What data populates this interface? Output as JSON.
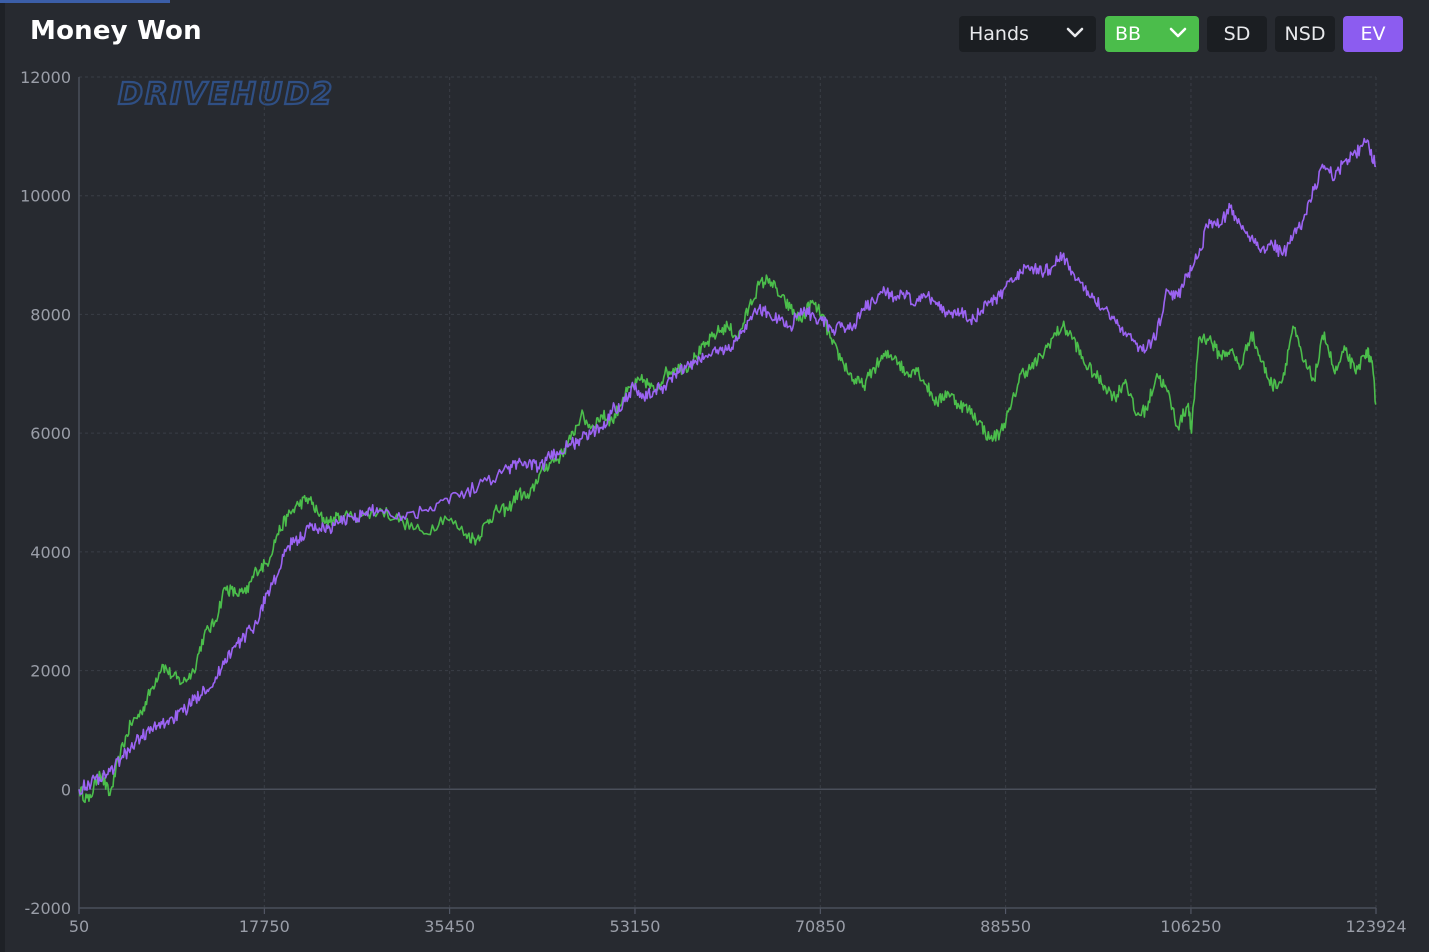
{
  "header": {
    "title": "Money Won"
  },
  "toolbar": {
    "x_unit_label": "Hands",
    "y_unit_label": "BB",
    "sd_label": "SD",
    "nsd_label": "NSD",
    "ev_label": "EV"
  },
  "watermark": "DRIVEHUD2",
  "colors": {
    "background": "#272a30",
    "grid": "#3a3e46",
    "won_line": "#4bbd4b",
    "ev_line": "#9b63f2",
    "active_green": "#4bbd4b",
    "active_violet": "#8c5cf0"
  },
  "chart_data": {
    "type": "line",
    "title": "Money Won",
    "xlabel": "",
    "ylabel": "",
    "xlim": [
      50,
      123924
    ],
    "ylim": [
      -2000,
      12000
    ],
    "x_ticks": [
      "50",
      "17750",
      "35450",
      "53150",
      "70850",
      "88550",
      "106250",
      "123924"
    ],
    "y_ticks": [
      "12000",
      "10000",
      "8000",
      "6000",
      "4000",
      "2000",
      "0",
      "-2000"
    ],
    "grid": true,
    "legend": "none",
    "series": [
      {
        "color": "#4bbd4b",
        "points": [
          [
            50,
            0
          ],
          [
            1000,
            -200
          ],
          [
            2000,
            300
          ],
          [
            3000,
            -100
          ],
          [
            4000,
            600
          ],
          [
            5000,
            1100
          ],
          [
            6000,
            1300
          ],
          [
            7000,
            1700
          ],
          [
            8000,
            2100
          ],
          [
            9000,
            1900
          ],
          [
            10000,
            1800
          ],
          [
            11000,
            2000
          ],
          [
            12000,
            2600
          ],
          [
            13000,
            2800
          ],
          [
            14000,
            3400
          ],
          [
            15000,
            3300
          ],
          [
            16000,
            3300
          ],
          [
            17000,
            3700
          ],
          [
            18000,
            3800
          ],
          [
            19000,
            4300
          ],
          [
            20000,
            4600
          ],
          [
            21000,
            4800
          ],
          [
            22000,
            4900
          ],
          [
            23000,
            4600
          ],
          [
            24000,
            4500
          ],
          [
            25000,
            4600
          ],
          [
            27000,
            4600
          ],
          [
            29000,
            4700
          ],
          [
            31000,
            4500
          ],
          [
            33000,
            4300
          ],
          [
            35000,
            4600
          ],
          [
            37000,
            4300
          ],
          [
            38000,
            4200
          ],
          [
            39000,
            4500
          ],
          [
            40000,
            4700
          ],
          [
            41000,
            4700
          ],
          [
            42000,
            5000
          ],
          [
            43000,
            4900
          ],
          [
            44000,
            5300
          ],
          [
            45000,
            5500
          ],
          [
            46000,
            5600
          ],
          [
            47000,
            5900
          ],
          [
            48000,
            6300
          ],
          [
            49000,
            6100
          ],
          [
            50000,
            6300
          ],
          [
            51000,
            6200
          ],
          [
            52000,
            6600
          ],
          [
            53000,
            6800
          ],
          [
            54000,
            6900
          ],
          [
            55000,
            6700
          ],
          [
            56000,
            7000
          ],
          [
            57000,
            7100
          ],
          [
            58000,
            7100
          ],
          [
            59000,
            7300
          ],
          [
            60000,
            7500
          ],
          [
            61000,
            7700
          ],
          [
            62000,
            7800
          ],
          [
            63000,
            7600
          ],
          [
            64000,
            8100
          ],
          [
            65000,
            8500
          ],
          [
            66000,
            8600
          ],
          [
            67000,
            8300
          ],
          [
            68000,
            8100
          ],
          [
            69000,
            7900
          ],
          [
            70000,
            8200
          ],
          [
            71000,
            8000
          ],
          [
            72000,
            7500
          ],
          [
            73000,
            7200
          ],
          [
            74000,
            6900
          ],
          [
            75000,
            6800
          ],
          [
            76000,
            7100
          ],
          [
            77000,
            7300
          ],
          [
            78000,
            7300
          ],
          [
            79000,
            7000
          ],
          [
            80000,
            7100
          ],
          [
            81000,
            6800
          ],
          [
            82000,
            6500
          ],
          [
            83000,
            6700
          ],
          [
            84000,
            6500
          ],
          [
            85000,
            6400
          ],
          [
            86000,
            6200
          ],
          [
            87000,
            5900
          ],
          [
            88000,
            6000
          ],
          [
            89000,
            6400
          ],
          [
            90000,
            7000
          ],
          [
            91000,
            7100
          ],
          [
            92000,
            7300
          ],
          [
            93000,
            7600
          ],
          [
            94000,
            7800
          ],
          [
            95000,
            7600
          ],
          [
            96000,
            7200
          ],
          [
            97000,
            7000
          ],
          [
            98000,
            6800
          ],
          [
            99000,
            6600
          ],
          [
            100000,
            6900
          ],
          [
            101000,
            6300
          ],
          [
            102000,
            6400
          ],
          [
            103000,
            7000
          ],
          [
            104000,
            6700
          ],
          [
            105000,
            6100
          ],
          [
            106000,
            6500
          ],
          [
            106300,
            6000
          ],
          [
            107000,
            7600
          ],
          [
            108000,
            7600
          ],
          [
            109000,
            7300
          ],
          [
            110000,
            7400
          ],
          [
            111000,
            7100
          ],
          [
            112000,
            7700
          ],
          [
            113000,
            7200
          ],
          [
            114000,
            6800
          ],
          [
            115000,
            6900
          ],
          [
            116000,
            7800
          ],
          [
            117000,
            7200
          ],
          [
            118000,
            6900
          ],
          [
            119000,
            7700
          ],
          [
            120000,
            7000
          ],
          [
            121000,
            7400
          ],
          [
            122000,
            7000
          ],
          [
            123000,
            7400
          ],
          [
            123500,
            7200
          ],
          [
            123924,
            6500
          ]
        ]
      },
      {
        "color": "#9b63f2",
        "points": [
          [
            50,
            0
          ],
          [
            1000,
            100
          ],
          [
            2000,
            200
          ],
          [
            3000,
            300
          ],
          [
            4000,
            500
          ],
          [
            5000,
            700
          ],
          [
            6000,
            900
          ],
          [
            7000,
            1000
          ],
          [
            8000,
            1100
          ],
          [
            9000,
            1200
          ],
          [
            10000,
            1300
          ],
          [
            11000,
            1500
          ],
          [
            12000,
            1700
          ],
          [
            13000,
            1800
          ],
          [
            14000,
            2200
          ],
          [
            15000,
            2400
          ],
          [
            16000,
            2600
          ],
          [
            17000,
            2800
          ],
          [
            18000,
            3300
          ],
          [
            19000,
            3600
          ],
          [
            20000,
            4100
          ],
          [
            21000,
            4200
          ],
          [
            22000,
            4400
          ],
          [
            23000,
            4400
          ],
          [
            24000,
            4400
          ],
          [
            25000,
            4500
          ],
          [
            26000,
            4600
          ],
          [
            27000,
            4600
          ],
          [
            28000,
            4700
          ],
          [
            29000,
            4700
          ],
          [
            31000,
            4600
          ],
          [
            33000,
            4700
          ],
          [
            35000,
            4900
          ],
          [
            37000,
            5000
          ],
          [
            39000,
            5200
          ],
          [
            41000,
            5400
          ],
          [
            42000,
            5500
          ],
          [
            43000,
            5500
          ],
          [
            44000,
            5400
          ],
          [
            45000,
            5600
          ],
          [
            46000,
            5700
          ],
          [
            47000,
            5800
          ],
          [
            48000,
            5900
          ],
          [
            49000,
            6000
          ],
          [
            50000,
            6100
          ],
          [
            51000,
            6400
          ],
          [
            52000,
            6500
          ],
          [
            53000,
            6800
          ],
          [
            54000,
            6600
          ],
          [
            55000,
            6700
          ],
          [
            56000,
            6800
          ],
          [
            57000,
            7000
          ],
          [
            58000,
            7100
          ],
          [
            59000,
            7200
          ],
          [
            60000,
            7300
          ],
          [
            61000,
            7400
          ],
          [
            62000,
            7400
          ],
          [
            63000,
            7600
          ],
          [
            64000,
            7900
          ],
          [
            65000,
            8100
          ],
          [
            66000,
            8000
          ],
          [
            67000,
            7900
          ],
          [
            68000,
            7800
          ],
          [
            69000,
            8100
          ],
          [
            70000,
            8000
          ],
          [
            71000,
            7900
          ],
          [
            72000,
            7700
          ],
          [
            73000,
            7800
          ],
          [
            74000,
            7800
          ],
          [
            75000,
            8100
          ],
          [
            76000,
            8200
          ],
          [
            77000,
            8400
          ],
          [
            78000,
            8300
          ],
          [
            79000,
            8300
          ],
          [
            80000,
            8200
          ],
          [
            81000,
            8300
          ],
          [
            82000,
            8200
          ],
          [
            83000,
            8000
          ],
          [
            84000,
            8100
          ],
          [
            85000,
            7900
          ],
          [
            86000,
            8000
          ],
          [
            87000,
            8200
          ],
          [
            88000,
            8300
          ],
          [
            89000,
            8600
          ],
          [
            90000,
            8700
          ],
          [
            91000,
            8800
          ],
          [
            92000,
            8700
          ],
          [
            93000,
            8800
          ],
          [
            94000,
            9000
          ],
          [
            95000,
            8700
          ],
          [
            96000,
            8400
          ],
          [
            97000,
            8300
          ],
          [
            98000,
            8100
          ],
          [
            99000,
            7900
          ],
          [
            100000,
            7700
          ],
          [
            101000,
            7500
          ],
          [
            102000,
            7400
          ],
          [
            103000,
            7700
          ],
          [
            104000,
            8400
          ],
          [
            105000,
            8300
          ],
          [
            106000,
            8700
          ],
          [
            107000,
            9000
          ],
          [
            108000,
            9600
          ],
          [
            109000,
            9500
          ],
          [
            110000,
            9800
          ],
          [
            111000,
            9500
          ],
          [
            112000,
            9300
          ],
          [
            113000,
            9100
          ],
          [
            114000,
            9200
          ],
          [
            115000,
            9000
          ],
          [
            116000,
            9300
          ],
          [
            117000,
            9600
          ],
          [
            118000,
            10100
          ],
          [
            119000,
            10500
          ],
          [
            120000,
            10300
          ],
          [
            121000,
            10600
          ],
          [
            122000,
            10700
          ],
          [
            123000,
            10900
          ],
          [
            123924,
            10500
          ]
        ]
      }
    ]
  }
}
